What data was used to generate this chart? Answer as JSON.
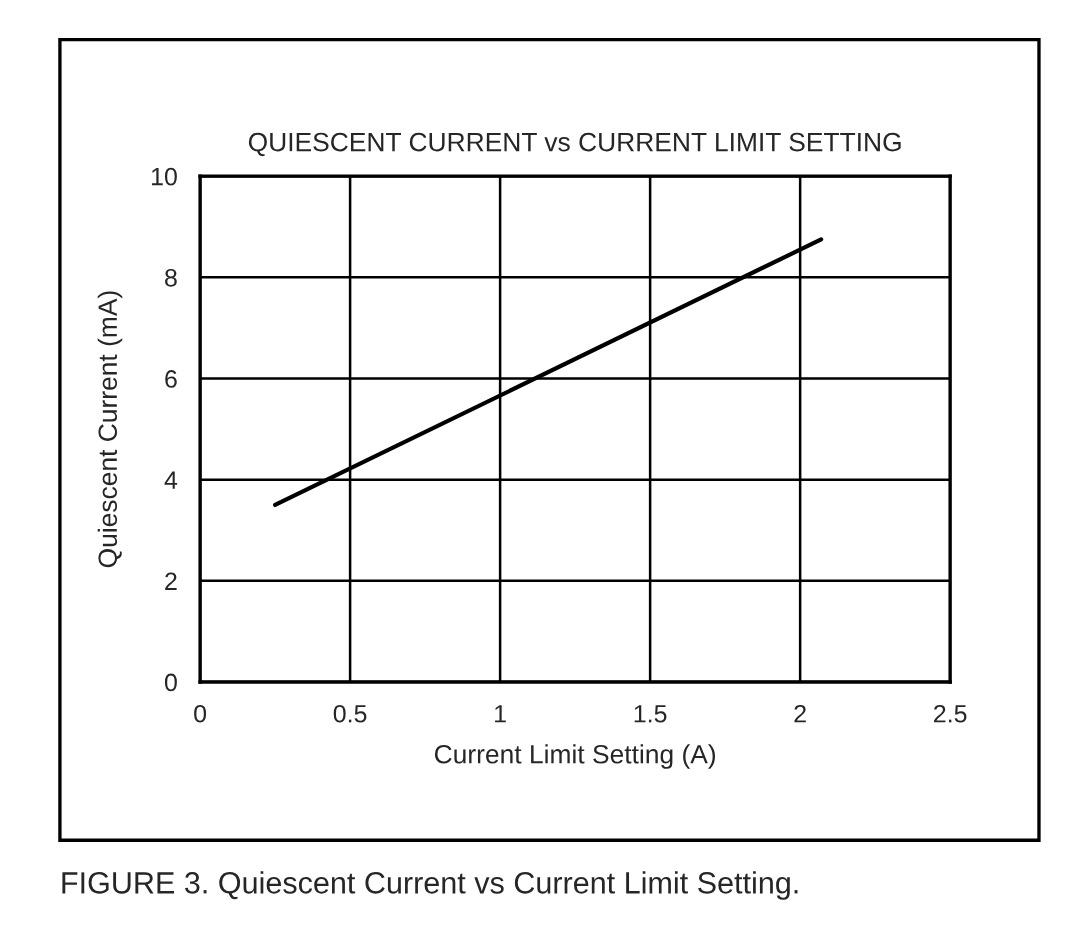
{
  "chart_data": {
    "type": "line",
    "title": "QUIESCENT CURRENT vs CURRENT LIMIT SETTING",
    "xlabel": "Current Limit Setting (A)",
    "ylabel": "Quiescent Current (mA)",
    "x": [
      0.25,
      2.07
    ],
    "series": [
      {
        "color": "#000000",
        "values": [
          3.5,
          8.75
        ]
      }
    ],
    "xlim": [
      0,
      2.5
    ],
    "xticks": [
      0,
      0.5,
      1,
      1.5,
      2,
      2.5
    ],
    "ylim": [
      0,
      10
    ],
    "yticks": [
      0,
      2,
      4,
      6,
      8,
      10
    ],
    "grid": true,
    "annotations": [
      "FIGURE 3. Quiescent Current vs Current Limit Setting."
    ]
  }
}
